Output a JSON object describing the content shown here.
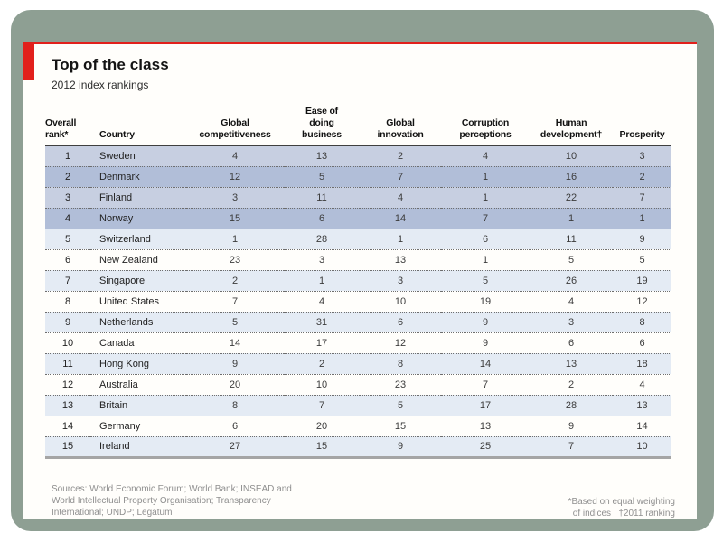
{
  "title": "Top of the class",
  "subtitle": "2012 index rankings",
  "chart_data": {
    "type": "table",
    "title": "Top of the class",
    "subtitle": "2012 index rankings",
    "columns": [
      "Overall rank*",
      "Country",
      "Global competitiveness",
      "Ease of doing business",
      "Global innovation",
      "Corruption perceptions",
      "Human development†",
      "Prosperity"
    ],
    "rows": [
      [
        1,
        "Sweden",
        4,
        13,
        2,
        4,
        10,
        3
      ],
      [
        2,
        "Denmark",
        12,
        5,
        7,
        1,
        16,
        2
      ],
      [
        3,
        "Finland",
        3,
        11,
        4,
        1,
        22,
        7
      ],
      [
        4,
        "Norway",
        15,
        6,
        14,
        7,
        1,
        1
      ],
      [
        5,
        "Switzerland",
        1,
        28,
        1,
        6,
        11,
        9
      ],
      [
        6,
        "New Zealand",
        23,
        3,
        13,
        1,
        5,
        5
      ],
      [
        7,
        "Singapore",
        2,
        1,
        3,
        5,
        26,
        19
      ],
      [
        8,
        "United States",
        7,
        4,
        10,
        19,
        4,
        12
      ],
      [
        9,
        "Netherlands",
        5,
        31,
        6,
        9,
        3,
        8
      ],
      [
        10,
        "Canada",
        14,
        17,
        12,
        9,
        6,
        6
      ],
      [
        11,
        "Hong Kong",
        9,
        2,
        8,
        14,
        13,
        18
      ],
      [
        12,
        "Australia",
        20,
        10,
        23,
        7,
        2,
        4
      ],
      [
        13,
        "Britain",
        8,
        7,
        5,
        17,
        28,
        13
      ],
      [
        14,
        "Germany",
        6,
        20,
        15,
        13,
        9,
        14
      ],
      [
        15,
        "Ireland",
        27,
        15,
        9,
        25,
        7,
        10
      ]
    ],
    "highlighted_rows": [
      "Sweden",
      "Denmark",
      "Finland",
      "Norway"
    ],
    "legend_position": "none",
    "grid": "dotted-row-separators"
  },
  "table": {
    "header_lines": [
      "Overall\nrank*",
      "Country",
      "Global\ncompetitiveness",
      "Ease of\ndoing\nbusiness",
      "Global\ninnovation",
      "Corruption\nperceptions",
      "Human\ndevelopment†",
      "Prosperity"
    ]
  },
  "footer": {
    "sources": "Sources: World Economic Forum; World Bank; INSEAD and\nWorld Intellectual Property Organisation; Transparency\nInternational; UNDP; Legatum",
    "note": "*Based on equal weighting\nof indices   †2011 ranking"
  },
  "colors": {
    "accent_red": "#e2201c",
    "frame_green": "#8e9f93",
    "hl_light": "#c7cfe1",
    "hl_dark": "#b1bed8",
    "stripe_blue": "#e4ebf4",
    "text_gray": "#8f8f8f"
  }
}
